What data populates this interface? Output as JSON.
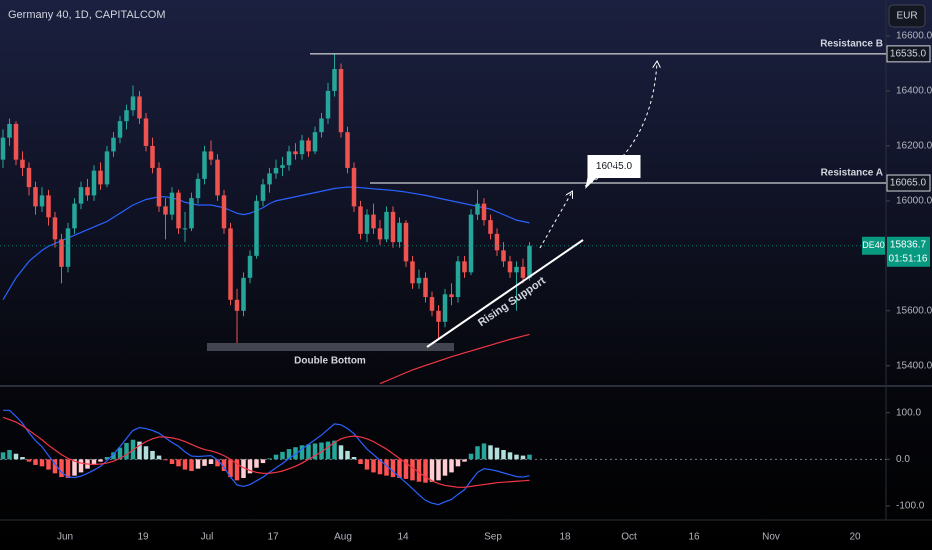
{
  "chart_data": [
    {
      "type": "candlestick",
      "title": "Germany 40, 1D, CAPITALCOM",
      "currency": "EUR",
      "up_color": "#26a69a",
      "down_color": "#ef5350",
      "ylim": [
        15330,
        16731
      ],
      "yticks": [
        {
          "value": 15400,
          "label": "15400.0"
        },
        {
          "value": 15600,
          "label": "15600.0"
        },
        {
          "value": 16000,
          "label": "16000.0"
        },
        {
          "value": 16200,
          "label": "16200.0"
        },
        {
          "value": 16400,
          "label": "16400.0"
        },
        {
          "value": 16600,
          "label": "16600.0"
        }
      ],
      "xtick_labels": [
        "Jun",
        "19",
        "Jul",
        "17",
        "Aug",
        "14",
        "Sep",
        "18",
        "Oct",
        "16",
        "Nov",
        "20"
      ],
      "candles": [
        [
          16150,
          16260,
          16120,
          16230
        ],
        [
          16230,
          16300,
          16200,
          16280
        ],
        [
          16280,
          16290,
          16130,
          16150
        ],
        [
          16150,
          16180,
          16090,
          16120
        ],
        [
          16120,
          16140,
          16020,
          16050
        ],
        [
          16050,
          16070,
          15950,
          15980
        ],
        [
          15980,
          16050,
          15960,
          16020
        ],
        [
          16020,
          16040,
          15910,
          15940
        ],
        [
          15940,
          15960,
          15830,
          15860
        ],
        [
          15860,
          15880,
          15700,
          15760
        ],
        [
          15760,
          15920,
          15740,
          15900
        ],
        [
          15900,
          16010,
          15880,
          15990
        ],
        [
          15990,
          16070,
          15970,
          16050
        ],
        [
          16050,
          16080,
          16000,
          16020
        ],
        [
          16020,
          16130,
          16000,
          16110
        ],
        [
          16110,
          16140,
          16040,
          16060
        ],
        [
          16060,
          16200,
          16050,
          16180
        ],
        [
          16180,
          16250,
          16160,
          16230
        ],
        [
          16230,
          16310,
          16210,
          16290
        ],
        [
          16290,
          16350,
          16260,
          16330
        ],
        [
          16330,
          16420,
          16310,
          16380
        ],
        [
          16380,
          16400,
          16280,
          16300
        ],
        [
          16300,
          16320,
          16180,
          16200
        ],
        [
          16200,
          16230,
          16100,
          16120
        ],
        [
          16120,
          16140,
          15960,
          15980
        ],
        [
          15980,
          16010,
          15860,
          15950
        ],
        [
          15950,
          16050,
          15930,
          16030
        ],
        [
          16030,
          16040,
          15880,
          15900
        ],
        [
          15900,
          15960,
          15850,
          15900
        ],
        [
          15900,
          16030,
          15890,
          16010
        ],
        [
          16010,
          16100,
          15990,
          16080
        ],
        [
          16080,
          16200,
          16060,
          16180
        ],
        [
          16180,
          16220,
          16130,
          16150
        ],
        [
          16150,
          16170,
          16000,
          16020
        ],
        [
          16020,
          16040,
          15880,
          15900
        ],
        [
          15900,
          15920,
          15620,
          15640
        ],
        [
          15640,
          15680,
          15480,
          15600
        ],
        [
          15600,
          15740,
          15580,
          15720
        ],
        [
          15720,
          15820,
          15700,
          15800
        ],
        [
          15800,
          16020,
          15790,
          16000
        ],
        [
          16000,
          16080,
          15980,
          16060
        ],
        [
          16060,
          16120,
          16030,
          16100
        ],
        [
          16100,
          16150,
          16080,
          16120
        ],
        [
          16120,
          16160,
          16090,
          16130
        ],
        [
          16130,
          16200,
          16110,
          16180
        ],
        [
          16180,
          16210,
          16150,
          16170
        ],
        [
          16170,
          16240,
          16150,
          16220
        ],
        [
          16220,
          16230,
          16160,
          16180
        ],
        [
          16180,
          16270,
          16170,
          16250
        ],
        [
          16250,
          16320,
          16230,
          16300
        ],
        [
          16300,
          16430,
          16280,
          16400
        ],
        [
          16400,
          16535,
          16380,
          16480
        ],
        [
          16480,
          16500,
          16230,
          16250
        ],
        [
          16250,
          16270,
          16100,
          16120
        ],
        [
          16120,
          16140,
          15960,
          15980
        ],
        [
          15980,
          16000,
          15860,
          15880
        ],
        [
          15880,
          15970,
          15850,
          15950
        ],
        [
          15950,
          15990,
          15880,
          15900
        ],
        [
          15900,
          15930,
          15840,
          15860
        ],
        [
          15860,
          15980,
          15850,
          15960
        ],
        [
          15960,
          15980,
          15830,
          15850
        ],
        [
          15850,
          15940,
          15830,
          15920
        ],
        [
          15920,
          15930,
          15760,
          15780
        ],
        [
          15780,
          15800,
          15680,
          15700
        ],
        [
          15700,
          15750,
          15680,
          15720
        ],
        [
          15720,
          15740,
          15630,
          15650
        ],
        [
          15650,
          15670,
          15580,
          15600
        ],
        [
          15600,
          15620,
          15500,
          15560
        ],
        [
          15560,
          15680,
          15540,
          15660
        ],
        [
          15660,
          15700,
          15620,
          15650
        ],
        [
          15650,
          15800,
          15630,
          15780
        ],
        [
          15780,
          15800,
          15720,
          15740
        ],
        [
          15740,
          15970,
          15730,
          15950
        ],
        [
          15950,
          16040,
          15930,
          15990
        ],
        [
          15990,
          16010,
          15910,
          15930
        ],
        [
          15930,
          15950,
          15860,
          15880
        ],
        [
          15880,
          15900,
          15800,
          15820
        ],
        [
          15820,
          15850,
          15760,
          15780
        ],
        [
          15780,
          15800,
          15720,
          15740
        ],
        [
          15740,
          15780,
          15600,
          15760
        ],
        [
          15760,
          15790,
          15700,
          15720
        ],
        [
          15720,
          15850,
          15710,
          15836.7
        ]
      ],
      "overlays": [
        {
          "color": "#2962ff",
          "values": [
            15640,
            15680,
            15720,
            15750,
            15780,
            15800,
            15820,
            15835,
            15845,
            15855,
            15865,
            15875,
            15885,
            15895,
            15905,
            15915,
            15925,
            15940,
            15955,
            15970,
            15985,
            15995,
            16005,
            16010,
            16015,
            16015,
            16010,
            16005,
            15995,
            15990,
            15985,
            15985,
            15985,
            15980,
            15975,
            15965,
            15955,
            15950,
            15955,
            15965,
            15975,
            15990,
            16000,
            16005,
            16010,
            16015,
            16020,
            16025,
            16030,
            16035,
            16040,
            16045,
            16048,
            16050,
            16050,
            16048,
            16046,
            16044,
            16042,
            16040,
            16038,
            16035,
            16032,
            16028,
            16024,
            16020,
            16015,
            16010,
            16005,
            16000,
            15995,
            15990,
            15985,
            15980,
            15975,
            15970,
            15960,
            15950,
            15940,
            15930,
            15925,
            15920
          ]
        },
        {
          "color": "#f23645",
          "values": [
            null,
            null,
            null,
            null,
            null,
            null,
            null,
            null,
            null,
            null,
            null,
            null,
            null,
            null,
            null,
            null,
            null,
            null,
            null,
            null,
            null,
            null,
            null,
            null,
            null,
            null,
            null,
            null,
            null,
            null,
            null,
            null,
            null,
            null,
            null,
            null,
            null,
            null,
            null,
            null,
            null,
            null,
            null,
            null,
            null,
            null,
            null,
            null,
            null,
            null,
            null,
            null,
            null,
            null,
            null,
            null,
            null,
            null,
            15335,
            15345,
            15355,
            15365,
            15375,
            15385,
            15393,
            15401,
            15409,
            15417,
            15425,
            15433,
            15440,
            15447,
            15454,
            15461,
            15468,
            15475,
            15482,
            15489,
            15496,
            15502,
            15508,
            15514
          ]
        }
      ],
      "resistances": [
        {
          "name": "Resistance B",
          "level": 16535,
          "level_label": "16535.0"
        },
        {
          "name": "Resistance A",
          "level": 16065,
          "level_label": "16065.0"
        }
      ],
      "target": {
        "value": 16045,
        "label": "16045.0"
      },
      "pattern_labels": [
        "Double Bottom",
        "Rising Support"
      ],
      "last_price": {
        "symbol": "DE40",
        "value": 15836.7,
        "countdown": "01:51:16"
      }
    },
    {
      "type": "macd",
      "ylim": [
        -130,
        155
      ],
      "yticks": [
        {
          "value": -100,
          "label": "-100.0"
        },
        {
          "value": 0,
          "label": "0.0"
        },
        {
          "value": 100,
          "label": "100.0"
        }
      ],
      "histogram": [
        15,
        20,
        12,
        5,
        -5,
        -12,
        -15,
        -22,
        -30,
        -38,
        -40,
        -35,
        -28,
        -20,
        -12,
        -5,
        5,
        15,
        25,
        35,
        42,
        38,
        28,
        18,
        8,
        -2,
        -10,
        -15,
        -22,
        -25,
        -20,
        -14,
        -10,
        -15,
        -25,
        -38,
        -45,
        -40,
        -30,
        -18,
        -8,
        2,
        10,
        16,
        22,
        26,
        30,
        32,
        34,
        36,
        38,
        40,
        30,
        18,
        5,
        -10,
        -22,
        -28,
        -32,
        -35,
        -38,
        -40,
        -42,
        -45,
        -48,
        -50,
        -48,
        -45,
        -35,
        -28,
        -15,
        -5,
        12,
        28,
        34,
        30,
        25,
        20,
        15,
        10,
        8,
        10
      ],
      "macd_line": {
        "color": "#2962ff",
        "values": [
          105,
          105,
          92,
          77,
          57,
          40,
          27,
          8,
          -10,
          -28,
          -38,
          -39,
          -36,
          -30,
          -23,
          -15,
          -3,
          11,
          27,
          45,
          62,
          68,
          66,
          62,
          56,
          46,
          36,
          28,
          16,
          7,
          6,
          7,
          8,
          -1,
          -17,
          -38,
          -55,
          -58,
          -54,
          -46,
          -38,
          -28,
          -18,
          -9,
          2,
          11,
          22,
          32,
          42,
          52,
          64,
          76,
          74,
          66,
          55,
          38,
          22,
          10,
          -2,
          -13,
          -26,
          -38,
          -50,
          -63,
          -76,
          -88,
          -94,
          -97,
          -91,
          -86,
          -75,
          -65,
          -46,
          -28,
          -20,
          -22,
          -25,
          -29,
          -33,
          -37,
          -38,
          -35
        ]
      },
      "signal_line": {
        "color": "#f23645",
        "values": [
          90,
          85,
          80,
          72,
          62,
          52,
          42,
          30,
          20,
          10,
          2,
          -4,
          -8,
          -10,
          -11,
          -10,
          -8,
          -4,
          2,
          10,
          20,
          30,
          38,
          44,
          48,
          48,
          46,
          43,
          38,
          32,
          26,
          21,
          18,
          14,
          8,
          0,
          -10,
          -18,
          -24,
          -28,
          -30,
          -30,
          -28,
          -25,
          -20,
          -15,
          -8,
          0,
          8,
          16,
          26,
          36,
          44,
          48,
          50,
          48,
          44,
          38,
          30,
          22,
          12,
          2,
          -8,
          -18,
          -28,
          -38,
          -46,
          -52,
          -56,
          -58,
          -60,
          -60,
          -58,
          -56,
          -54,
          -52,
          -50,
          -49,
          -48,
          -47,
          -46,
          -45
        ]
      }
    }
  ]
}
